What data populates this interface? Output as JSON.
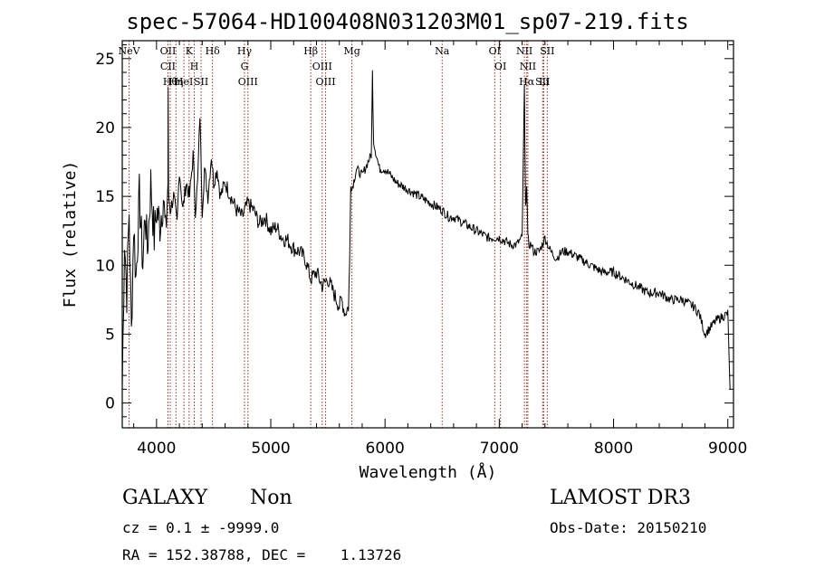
{
  "chart_data": {
    "type": "line",
    "title": "spec-57064-HD100408N031203M01_sp07-219.fits",
    "xlabel": "Wavelength (Å)",
    "ylabel": "Flux (relative)",
    "xlim": [
      3700,
      9050
    ],
    "ylim": [
      -1.8,
      26.3
    ],
    "xticks": [
      4000,
      5000,
      6000,
      7000,
      8000,
      9000
    ],
    "yticks": [
      0,
      5,
      10,
      15,
      20,
      25
    ],
    "series": [
      {
        "name": "spectrum",
        "x": [
          3700,
          3720,
          3740,
          3760,
          3780,
          3800,
          3820,
          3850,
          3880,
          3900,
          3920,
          3950,
          3980,
          4000,
          4030,
          4060,
          4080,
          4100,
          4102,
          4105,
          4120,
          4150,
          4180,
          4200,
          4230,
          4260,
          4290,
          4320,
          4340,
          4360,
          4380,
          4400,
          4420,
          4450,
          4480,
          4500,
          4530,
          4560,
          4600,
          4650,
          4700,
          4750,
          4800,
          4850,
          4900,
          4950,
          5000,
          5050,
          5100,
          5150,
          5200,
          5250,
          5300,
          5350,
          5400,
          5450,
          5500,
          5550,
          5600,
          5620,
          5650,
          5680,
          5690,
          5700,
          5710,
          5750,
          5800,
          5850,
          5880,
          5890,
          5900,
          5950,
          6000,
          6050,
          6100,
          6200,
          6300,
          6400,
          6500,
          6560,
          6600,
          6700,
          6800,
          6900,
          7000,
          7100,
          7150,
          7200,
          7220,
          7230,
          7240,
          7250,
          7260,
          7280,
          7300,
          7350,
          7400,
          7450,
          7500,
          7550,
          7600,
          7700,
          7800,
          7900,
          8000,
          8100,
          8200,
          8300,
          8400,
          8500,
          8600,
          8700,
          8750,
          8800,
          8900,
          9000,
          9020
        ],
        "values": [
          1,
          12,
          8,
          14,
          5,
          13,
          9,
          15,
          10,
          14,
          11,
          16,
          12,
          14,
          13,
          15,
          12,
          16,
          23,
          15,
          14,
          15,
          13,
          17,
          14,
          16,
          15,
          18,
          14,
          16,
          21,
          14,
          17,
          15,
          18,
          16,
          17,
          15,
          16,
          15,
          14,
          13.5,
          14.5,
          14,
          13,
          13.5,
          12.5,
          12.8,
          12,
          11.8,
          11.2,
          11,
          10.5,
          9,
          9.5,
          8.5,
          9,
          8,
          7,
          7.5,
          6.5,
          7,
          10,
          16,
          15.5,
          17,
          16.5,
          17.5,
          18,
          24,
          19,
          17,
          17,
          16.5,
          16,
          15.5,
          15,
          14.5,
          14,
          13.5,
          13.5,
          13,
          12.5,
          12,
          12,
          11.5,
          11.5,
          12,
          23,
          14,
          16,
          12,
          11.5,
          11.5,
          11,
          11,
          12,
          11,
          10.5,
          11,
          11,
          10.5,
          10,
          9.5,
          9.5,
          9,
          8.5,
          8,
          8,
          7.5,
          7.5,
          7,
          6.5,
          5,
          6,
          6.5,
          1
        ]
      }
    ],
    "lines": [
      {
        "label": "NeV",
        "wave": 3760
      },
      {
        "label": "OII",
        "wave": 4100
      },
      {
        "label": "CII",
        "wave": 4100
      },
      {
        "label": "Hθ",
        "wave": 4120
      },
      {
        "label": "Hη",
        "wave": 4170
      },
      {
        "label": "HeI",
        "wave": 4240
      },
      {
        "label": "K",
        "wave": 4285
      },
      {
        "label": "H",
        "wave": 4330
      },
      {
        "label": "SII",
        "wave": 4390
      },
      {
        "label": "Hδ",
        "wave": 4490
      },
      {
        "label": "Hγ",
        "wave": 4770
      },
      {
        "label": "G",
        "wave": 4770
      },
      {
        "label": "OIII",
        "wave": 4800
      },
      {
        "label": "Hβ",
        "wave": 5350
      },
      {
        "label": "OIII",
        "wave": 5450
      },
      {
        "label": "OIII",
        "wave": 5480
      },
      {
        "label": "Mg",
        "wave": 5710
      },
      {
        "label": "Na",
        "wave": 6500
      },
      {
        "label": "OI",
        "wave": 6960
      },
      {
        "label": "OI",
        "wave": 7010
      },
      {
        "label": "NII",
        "wave": 7220
      },
      {
        "label": "NII",
        "wave": 7250
      },
      {
        "label": "Hα",
        "wave": 7240
      },
      {
        "label": "SII",
        "wave": 7380
      },
      {
        "label": "Li",
        "wave": 7390
      },
      {
        "label": "SII",
        "wave": 7420
      }
    ]
  },
  "footer": {
    "object_class": "GALAXY",
    "subclass": "Non",
    "survey": "LAMOST DR3",
    "redshift": "cz = 0.1 ± -9999.0",
    "obs_date": "Obs-Date: 20150210",
    "coords": "RA = 152.38788, DEC =    1.13726"
  }
}
